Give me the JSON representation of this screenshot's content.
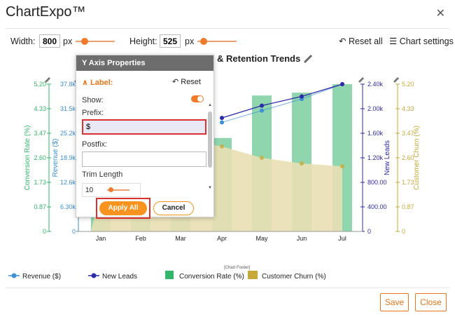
{
  "app": {
    "title": "ChartExpo™",
    "close_icon": "close-icon"
  },
  "toolbar": {
    "width_label": "Width:",
    "width_value": "800",
    "width_unit": "px",
    "height_label": "Height:",
    "height_value": "525",
    "height_unit": "px",
    "reset_all": "Reset all",
    "chart_settings": "Chart settings"
  },
  "chart": {
    "title_visible": "& Retention Trends",
    "footer_label": "[Chart Footer]",
    "left_axis_1_label": "Conversion Rate (%)",
    "left_axis_2_label": "Revenue ($)",
    "right_axis_1_label": "New Leads",
    "right_axis_2_label": "Customer Churn (%)",
    "colors": {
      "green": "#33b56c",
      "blue": "#3d8fd6",
      "navy": "#2d2aa8",
      "gold": "#c7a93a"
    }
  },
  "chart_data": {
    "type": "bar",
    "categories": [
      "Jan",
      "Feb",
      "Mar",
      "Apr",
      "May",
      "Jun",
      "Jul"
    ],
    "series": [
      {
        "name": "Conversion Rate (%)",
        "type": "bar",
        "axis": "left-1",
        "values": [
          0.6,
          3.0,
          3.1,
          3.3,
          4.8,
          4.9,
          5.2
        ]
      },
      {
        "name": "Revenue ($)",
        "type": "line",
        "axis": "left-2",
        "values": [
          null,
          null,
          null,
          28000,
          31000,
          34000,
          37800
        ]
      },
      {
        "name": "New Leads",
        "type": "line",
        "axis": "right-1",
        "values": [
          null,
          null,
          null,
          1.85,
          2.05,
          2.2,
          2.4
        ]
      },
      {
        "name": "Customer Churn (%)",
        "type": "area",
        "axis": "right-2",
        "values": [
          1.5,
          2.9,
          3.3,
          3.0,
          2.6,
          2.4,
          2.3
        ]
      }
    ],
    "axes": {
      "left_1": {
        "label": "Conversion Rate (%)",
        "ticks": [
          "0",
          "0.87",
          "1.73",
          "2.60",
          "3.47",
          "4.33",
          "5.20"
        ],
        "range": [
          0,
          5.2
        ]
      },
      "left_2": {
        "label": "Revenue ($)",
        "ticks": [
          "0",
          "6.30k",
          "12.6k",
          "18.9k",
          "25.2k",
          "31.5k",
          "37.8k"
        ],
        "range": [
          0,
          37800
        ]
      },
      "right_1": {
        "label": "New Leads",
        "ticks": [
          "0",
          "400.00",
          "800.00",
          "1.20k",
          "1.60k",
          "2.00k",
          "2.40k"
        ],
        "range": [
          0,
          2400
        ]
      },
      "right_2": {
        "label": "Customer Churn (%)",
        "ticks": [
          "0",
          "0.87",
          "1.73",
          "2.60",
          "3.47",
          "4.33",
          "5.20"
        ],
        "range": [
          0,
          5.2
        ]
      }
    }
  },
  "legend": [
    {
      "label": "Revenue ($)",
      "icon": "line-marker-icon",
      "color": "#3d8fd6"
    },
    {
      "label": "New Leads",
      "icon": "line-marker-icon",
      "color": "#2d2aa8"
    },
    {
      "label": "Conversion Rate (%)",
      "icon": "bar-icon",
      "color": "#33b56c"
    },
    {
      "label": "Customer Churn (%)",
      "icon": "area-icon",
      "color": "#c7a93a"
    }
  ],
  "panel": {
    "title": "Y Axis Properties",
    "section": "Label:",
    "reset": "Reset",
    "show_label": "Show:",
    "prefix_label": "Prefix:",
    "prefix_value": "$",
    "postfix_label": "Postfix:",
    "postfix_value": "",
    "trim_label": "Trim Length",
    "trim_value": "10",
    "apply_all": "Apply All",
    "cancel": "Cancel"
  },
  "footer": {
    "save": "Save",
    "close": "Close"
  }
}
